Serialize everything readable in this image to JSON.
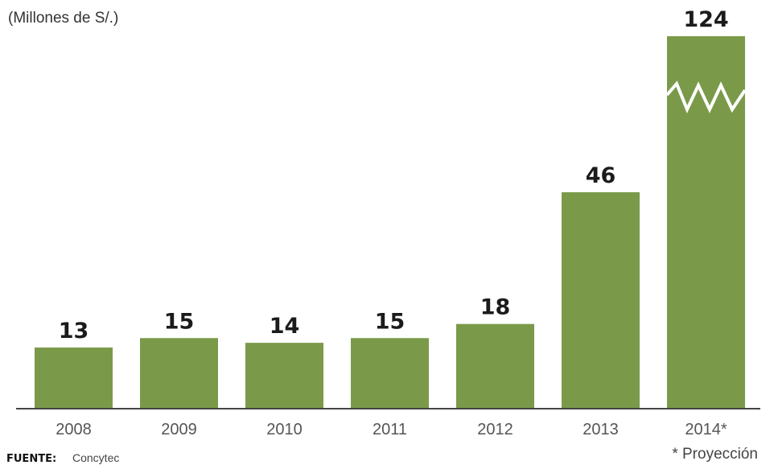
{
  "chart_data": {
    "type": "bar",
    "subtitle": "(Millones de S/.)",
    "categories": [
      "2008",
      "2009",
      "2010",
      "2011",
      "2012",
      "2013",
      "2014*"
    ],
    "values": [
      13,
      15,
      14,
      15,
      18,
      46,
      124
    ],
    "data_labels": [
      "13",
      "15",
      "14",
      "15",
      "18",
      "46",
      "124"
    ],
    "broken_axis_bar": "2014*",
    "bar_color": "#7a9a4a",
    "axis_color": "#444444",
    "grid": false,
    "legend": "none",
    "footnote": "* Proyección",
    "source_label": "FUENTE:",
    "source_value": "Concytec"
  }
}
